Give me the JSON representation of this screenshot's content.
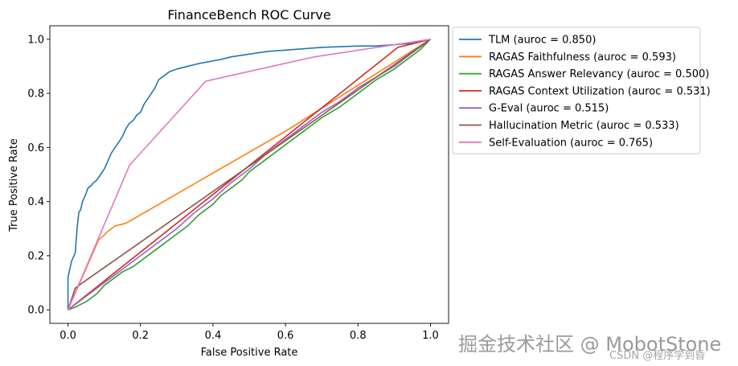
{
  "chart_data": {
    "type": "line",
    "title": "FinanceBench ROC Curve",
    "xlabel": "False Positive Rate",
    "ylabel": "True Positive Rate",
    "xlim": [
      -0.05,
      1.05
    ],
    "ylim": [
      -0.05,
      1.05
    ],
    "xticks": [
      "0.0",
      "0.2",
      "0.4",
      "0.6",
      "0.8",
      "1.0"
    ],
    "yticks": [
      "0.0",
      "0.2",
      "0.4",
      "0.6",
      "0.8",
      "1.0"
    ],
    "legend_position": "outside-right",
    "series": [
      {
        "name": "TLM (auroc = 0.850)",
        "color": "#1f77b4",
        "x": [
          0,
          0,
          0.005,
          0.01,
          0.02,
          0.025,
          0.03,
          0.035,
          0.04,
          0.05,
          0.055,
          0.065,
          0.07,
          0.08,
          0.09,
          0.1,
          0.11,
          0.12,
          0.13,
          0.14,
          0.15,
          0.16,
          0.17,
          0.18,
          0.19,
          0.2,
          0.21,
          0.22,
          0.23,
          0.24,
          0.25,
          0.26,
          0.28,
          0.3,
          0.33,
          0.36,
          0.38,
          0.4,
          0.42,
          0.45,
          0.5,
          0.55,
          0.6,
          0.7,
          0.8,
          0.85,
          0.9,
          0.95,
          1.0
        ],
        "y": [
          0,
          0.12,
          0.15,
          0.18,
          0.21,
          0.3,
          0.36,
          0.37,
          0.4,
          0.43,
          0.45,
          0.46,
          0.47,
          0.48,
          0.5,
          0.52,
          0.55,
          0.58,
          0.6,
          0.62,
          0.64,
          0.67,
          0.69,
          0.7,
          0.72,
          0.73,
          0.76,
          0.78,
          0.8,
          0.82,
          0.85,
          0.86,
          0.88,
          0.89,
          0.9,
          0.91,
          0.915,
          0.92,
          0.925,
          0.935,
          0.945,
          0.955,
          0.96,
          0.97,
          0.975,
          0.975,
          0.98,
          0.985,
          1.0
        ]
      },
      {
        "name": "RAGAS Faithfulness (auroc = 0.593)",
        "color": "#ff7f0e",
        "x": [
          0,
          0.085,
          0.095,
          0.11,
          0.13,
          0.16,
          0.6,
          1.0
        ],
        "y": [
          0,
          0.26,
          0.27,
          0.29,
          0.31,
          0.32,
          0.66,
          1.0
        ]
      },
      {
        "name": "RAGAS Answer Relevancy (auroc = 0.500)",
        "color": "#2ca02c",
        "x": [
          0,
          0.02,
          0.05,
          0.08,
          0.1,
          0.13,
          0.15,
          0.18,
          0.2,
          0.22,
          0.25,
          0.28,
          0.3,
          0.33,
          0.36,
          0.4,
          0.42,
          0.45,
          0.48,
          0.5,
          0.52,
          0.55,
          0.58,
          0.6,
          0.62,
          0.65,
          0.7,
          0.75,
          0.8,
          0.85,
          0.9,
          0.95,
          0.97,
          1.0
        ],
        "y": [
          0,
          0.01,
          0.03,
          0.06,
          0.09,
          0.12,
          0.14,
          0.16,
          0.18,
          0.2,
          0.23,
          0.26,
          0.28,
          0.31,
          0.35,
          0.39,
          0.42,
          0.45,
          0.48,
          0.51,
          0.53,
          0.56,
          0.59,
          0.61,
          0.63,
          0.66,
          0.71,
          0.75,
          0.8,
          0.85,
          0.89,
          0.94,
          0.96,
          1.0
        ]
      },
      {
        "name": "RAGAS Context Utilization (auroc = 0.531)",
        "color": "#d62728",
        "x": [
          0,
          0.91,
          1.0
        ],
        "y": [
          0,
          0.97,
          1.0
        ]
      },
      {
        "name": "G-Eval (auroc = 0.515)",
        "color": "#9467bd",
        "x": [
          0,
          0.05,
          0.1,
          0.15,
          0.2,
          0.25,
          0.3,
          0.35,
          0.4,
          0.45,
          0.5,
          0.55,
          0.6,
          0.65,
          0.7,
          0.75,
          0.8,
          0.85,
          0.9,
          0.95,
          1.0
        ],
        "y": [
          0,
          0.05,
          0.1,
          0.15,
          0.2,
          0.25,
          0.3,
          0.36,
          0.41,
          0.47,
          0.52,
          0.58,
          0.63,
          0.68,
          0.73,
          0.77,
          0.82,
          0.86,
          0.9,
          0.95,
          1.0
        ]
      },
      {
        "name": "Hallucination Metric (auroc = 0.533)",
        "color": "#8c564b",
        "x": [
          0,
          0.02,
          0.04,
          1.0
        ],
        "y": [
          0,
          0.08,
          0.1,
          1.0
        ]
      },
      {
        "name": "Self-Evaluation (auroc = 0.765)",
        "color": "#e377c2",
        "x": [
          0,
          0.17,
          0.38,
          0.68,
          1.0
        ],
        "y": [
          0,
          0.535,
          0.845,
          0.935,
          1.0
        ]
      }
    ]
  },
  "watermark": {
    "main": "掘金技术社区 @ MobotStone",
    "sub": "CSDN @程序学到昏"
  }
}
